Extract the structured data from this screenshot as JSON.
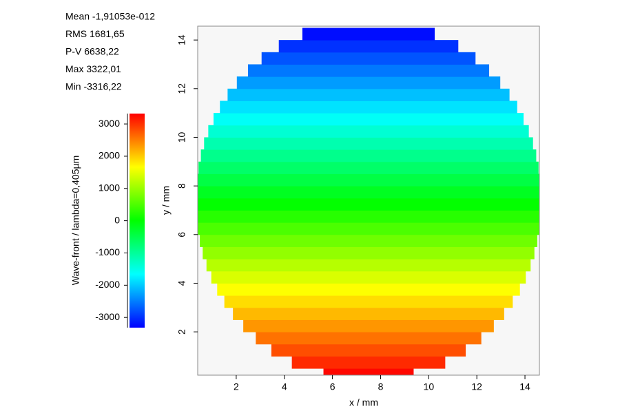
{
  "chart_data": {
    "type": "heatmap",
    "annotations": [
      "Mean -1,91053e-012",
      "RMS 1681,65",
      "P-V 6638,22",
      "Max 3322,01",
      "Min -3316,22"
    ],
    "xlabel": "x / mm",
    "ylabel": "y / mm",
    "colorbar_label": "Wave-front / lambda=0,405µm",
    "xlim": [
      0.4,
      14.6
    ],
    "xticks": [
      2,
      4,
      6,
      8,
      10,
      12,
      14
    ],
    "ylim": [
      0.22,
      14.57
    ],
    "yticks": [
      2,
      4,
      6,
      8,
      10,
      12,
      14
    ],
    "clim": [
      -3316.22,
      3322.01
    ],
    "cticks": [
      -3000,
      -2000,
      -1000,
      0,
      1000,
      2000,
      3000
    ],
    "colormap": [
      "#0000ff",
      "#00ffff",
      "#00ff00",
      "#ffff00",
      "#ff0000"
    ],
    "aperture": {
      "center": [
        7.5,
        7.4
      ],
      "radius": 7.15
    },
    "y": [
      0.25,
      0.75,
      1.25,
      1.75,
      2.25,
      2.75,
      3.25,
      3.75,
      4.25,
      4.75,
      5.25,
      5.75,
      6.25,
      6.75,
      7.25,
      7.75,
      8.25,
      8.75,
      9.25,
      9.75,
      10.25,
      10.75,
      11.25,
      11.75,
      12.25,
      12.75,
      13.25,
      13.75,
      14.25
    ],
    "values": [
      3278,
      3046,
      2813,
      2581,
      2348,
      2116,
      1883,
      1651,
      1418,
      1186,
      953,
      721,
      488,
      256,
      23,
      -209,
      -442,
      -674,
      -907,
      -1139,
      -1372,
      -1604,
      -1837,
      -2069,
      -2302,
      -2534,
      -2767,
      -2999,
      -3232
    ]
  }
}
